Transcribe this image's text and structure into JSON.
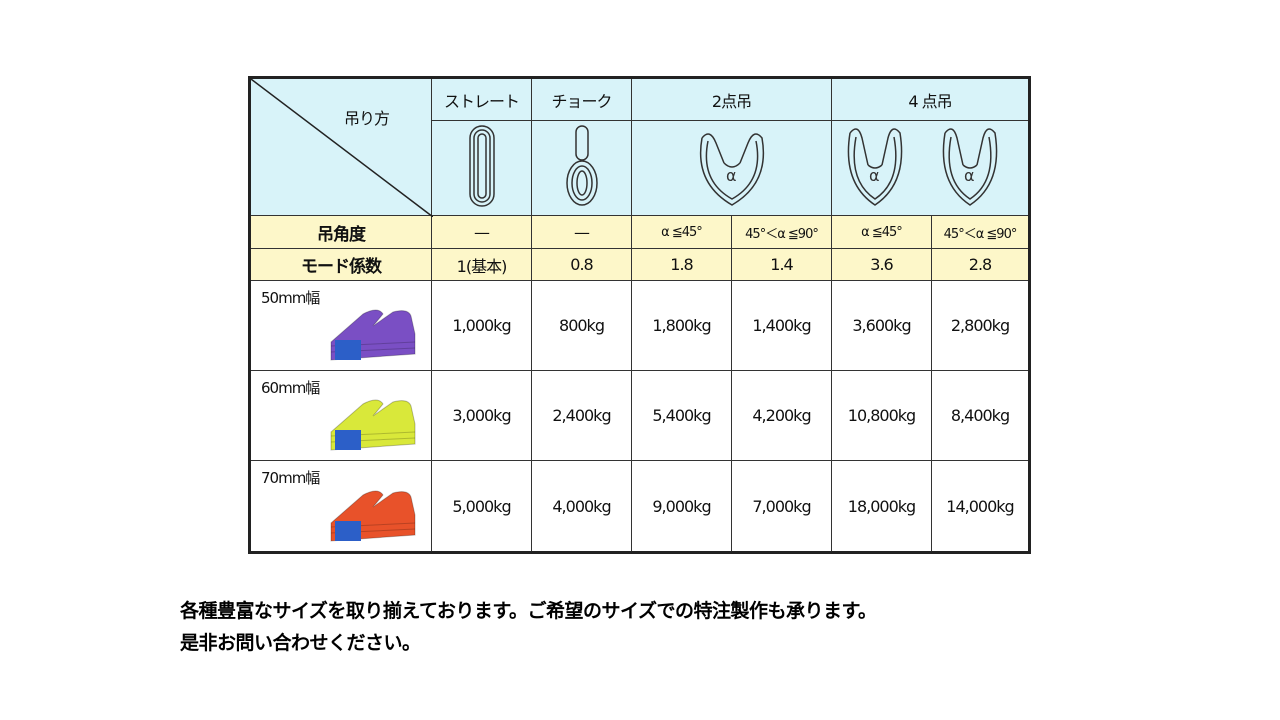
{
  "table": {
    "corner_label": "吊り方",
    "methods": [
      "ストレート",
      "チョーク",
      "2点吊",
      "4 点吊"
    ],
    "angle_label": "吊角度",
    "angles": [
      "—",
      "—",
      "α ≦45°",
      "45°＜α ≦90°",
      "α ≦45°",
      "45°＜α ≦90°"
    ],
    "mode_label": "モード係数",
    "modes": [
      "1(基本)",
      "0.8",
      "1.8",
      "1.4",
      "3.6",
      "2.8"
    ],
    "rows": [
      {
        "size": "50mm幅",
        "color": "#7a4fc4",
        "values": [
          "1,000kg",
          "800kg",
          "1,800kg",
          "1,400kg",
          "3,600kg",
          "2,800kg"
        ]
      },
      {
        "size": "60mm幅",
        "color": "#d9e83a",
        "values": [
          "3,000kg",
          "2,400kg",
          "5,400kg",
          "4,200kg",
          "10,800kg",
          "8,400kg"
        ]
      },
      {
        "size": "70mm幅",
        "color": "#e8522a",
        "values": [
          "5,000kg",
          "4,000kg",
          "9,000kg",
          "7,000kg",
          "18,000kg",
          "14,000kg"
        ]
      }
    ],
    "alpha": "α"
  },
  "footer": {
    "line1": "各種豊富なサイズを取り揃えております。ご希望のサイズでの特注製作も承ります。",
    "line2": "是非お問い合わせください。"
  }
}
